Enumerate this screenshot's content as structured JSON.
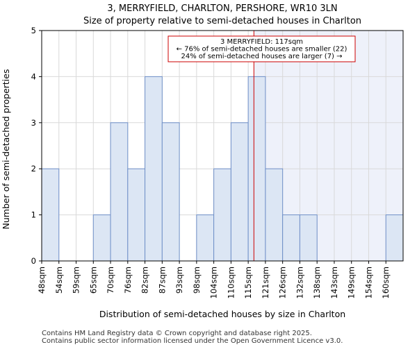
{
  "chart_data": {
    "type": "bar",
    "title": "3, MERRYFIELD, CHARLTON, PERSHORE, WR10 3LN",
    "subtitle": "Size of property relative to semi-detached houses in Charlton",
    "xlabel": "Distribution of semi-detached houses by size in Charlton",
    "ylabel": "Number of semi-detached properties",
    "categories": [
      "48sqm",
      "54sqm",
      "59sqm",
      "65sqm",
      "70sqm",
      "76sqm",
      "82sqm",
      "87sqm",
      "93sqm",
      "98sqm",
      "104sqm",
      "110sqm",
      "115sqm",
      "121sqm",
      "126sqm",
      "132sqm",
      "138sqm",
      "143sqm",
      "149sqm",
      "154sqm",
      "160sqm"
    ],
    "values": [
      2,
      0,
      0,
      1,
      3,
      2,
      4,
      3,
      0,
      1,
      2,
      3,
      4,
      2,
      1,
      1,
      0,
      0,
      0,
      0,
      1
    ],
    "ylim": [
      0,
      5
    ],
    "yticks": [
      0,
      1,
      2,
      3,
      4,
      5
    ],
    "grid": true,
    "marker": {
      "value_sqm": 117,
      "bin_index": 12,
      "fraction_in_bin": 0.33,
      "color": "#cc0000",
      "label_lines": [
        "3 MERRYFIELD: 117sqm",
        "← 76% of semi-detached houses are smaller (22)",
        "24% of semi-detached houses are larger (7) →"
      ]
    },
    "colors": {
      "bar_fill": "#dce6f4",
      "bar_edge": "#6f8fc8",
      "highlight_region": "#eef1fa",
      "marker": "#cc0000"
    }
  },
  "footer": {
    "line1": "Contains HM Land Registry data © Crown copyright and database right 2025.",
    "line2": "Contains public sector information licensed under the Open Government Licence v3.0."
  }
}
